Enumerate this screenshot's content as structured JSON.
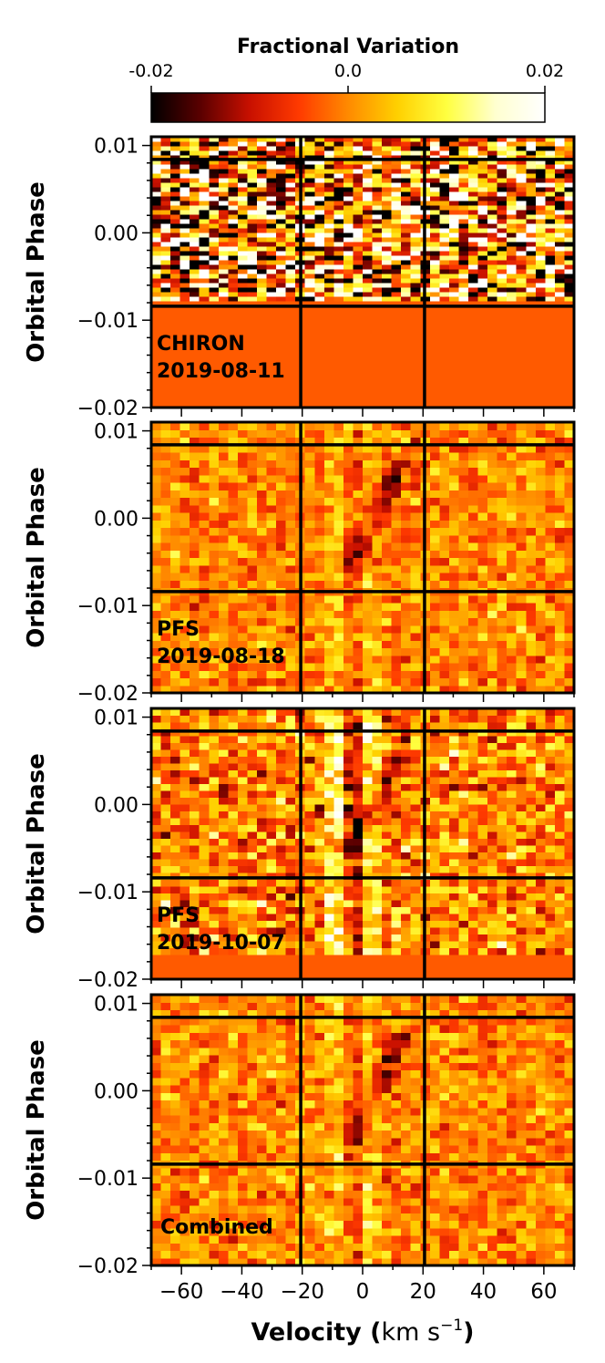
{
  "colorbar": {
    "title": "Fractional Variation",
    "ticks": [
      {
        "value": -0.02,
        "label": "-0.02"
      },
      {
        "value": 0.0,
        "label": "0.0"
      },
      {
        "value": 0.02,
        "label": "0.02"
      }
    ],
    "colormap": [
      "#000000",
      "#5a0000",
      "#c81000",
      "#ff3a00",
      "#ff8a00",
      "#ffd000",
      "#ffff40",
      "#ffffd0",
      "#ffffff"
    ]
  },
  "chart_data": {
    "type": "heatmap",
    "xlabel_main": "Velocity (",
    "xlabel_unit": "km s",
    "xlabel_exp": "−1",
    "xlabel_close": ")",
    "xlim": [
      -70,
      70
    ],
    "ylim": [
      -0.02,
      0.011
    ],
    "xticks": [
      {
        "value": -60,
        "label": "−60"
      },
      {
        "value": -40,
        "label": "−40"
      },
      {
        "value": -20,
        "label": "−20"
      },
      {
        "value": 0,
        "label": "0"
      },
      {
        "value": 20,
        "label": "20"
      },
      {
        "value": 40,
        "label": "40"
      },
      {
        "value": 60,
        "label": "60"
      }
    ],
    "yticks": [
      {
        "value": 0.01,
        "label": "0.01"
      },
      {
        "value": 0.0,
        "label": "0.00"
      },
      {
        "value": -0.01,
        "label": "−0.01"
      },
      {
        "value": -0.02,
        "label": "−0.02"
      }
    ],
    "reference_lines": {
      "velocity": [
        -20.5,
        20.5
      ],
      "phase": [
        0.0084,
        -0.0084
      ]
    },
    "fill_value": -0.003,
    "panels": [
      {
        "id": "chiron",
        "ylabel": "Orbital Phase",
        "label_line1": "CHIRON",
        "label_line2": "2019-08-11",
        "data_phase_range": [
          -0.0078,
          0.011
        ],
        "noise": 0.016,
        "shadow_strength": 0,
        "residual_strength": 0
      },
      {
        "id": "pfs1",
        "ylabel": "Orbital Phase",
        "label_line1": "PFS",
        "label_line2": "2019-08-18",
        "data_phase_range": [
          -0.02,
          0.011
        ],
        "noise": 0.004,
        "shadow_strength": 0.012,
        "residual_strength": 0.004
      },
      {
        "id": "pfs2",
        "ylabel": "Orbital Phase",
        "label_line1": "PFS",
        "label_line2": "2019-10-07",
        "data_phase_range": [
          -0.0172,
          0.011
        ],
        "noise": 0.006,
        "shadow_strength": 0.011,
        "residual_strength": 0.012
      },
      {
        "id": "combined",
        "ylabel": "Orbital Phase",
        "label_line1": "Combined",
        "label_line2": "",
        "data_phase_range": [
          -0.02,
          0.011
        ],
        "noise": 0.004,
        "shadow_strength": 0.01,
        "residual_strength": 0.006
      }
    ],
    "planet_shadow": {
      "phase_start": -0.0065,
      "velocity_start": -5,
      "phase_end": 0.0065,
      "velocity_end": 13
    }
  }
}
